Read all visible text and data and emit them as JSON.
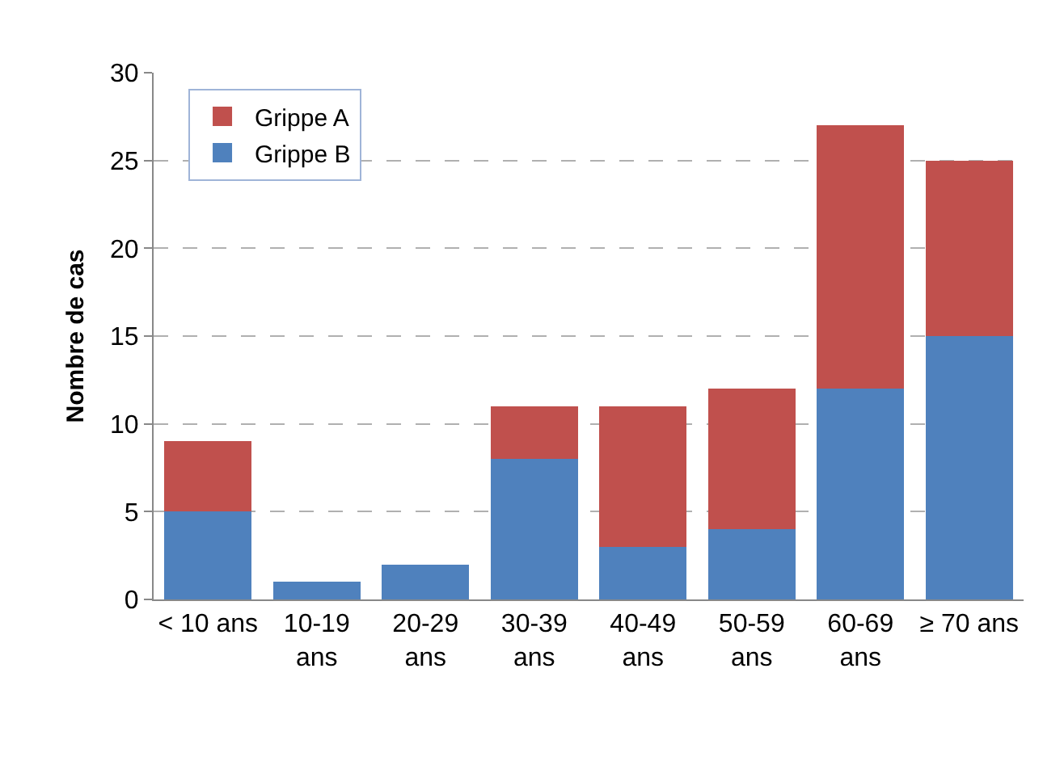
{
  "chart_data": {
    "type": "bar",
    "stacked": true,
    "ylabel": "Nombre de cas",
    "categories": [
      "< 10 ans",
      "10-19 ans",
      "20-29 ans",
      "30-39 ans",
      "40-49 ans",
      "50-59 ans",
      "60-69 ans",
      "≥ 70 ans"
    ],
    "series": [
      {
        "name": "Grippe B",
        "color": "#4f81bd",
        "values": [
          5,
          1,
          2,
          8,
          3,
          4,
          12,
          15
        ]
      },
      {
        "name": "Grippe A",
        "color": "#c0504d",
        "values": [
          4,
          0,
          0,
          3,
          8,
          8,
          15,
          10
        ]
      }
    ],
    "ylim": [
      0,
      30
    ],
    "yticks": [
      0,
      5,
      10,
      15,
      20,
      25,
      30
    ],
    "grid": "y",
    "legend": "top left"
  }
}
